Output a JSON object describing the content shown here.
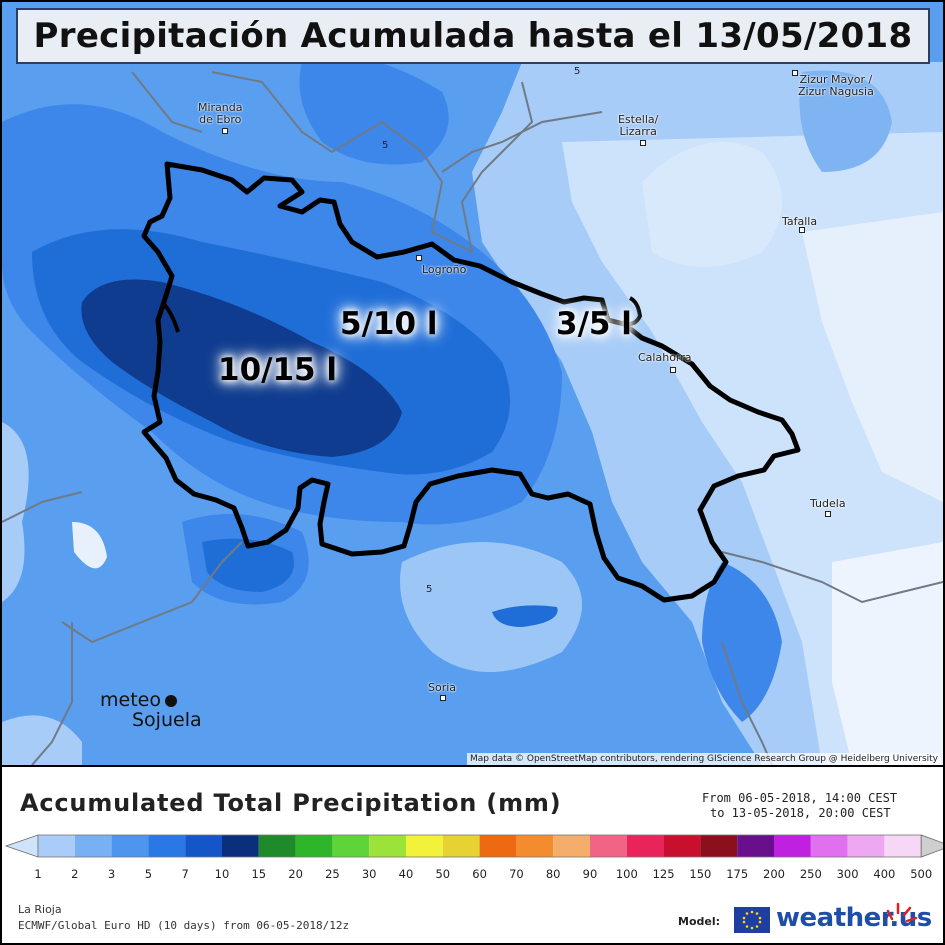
{
  "title": "Precipitación Acumulada hasta el 13/05/2018",
  "map": {
    "cities": [
      {
        "name": "Miranda\nde Ebro"
      },
      {
        "name": "Estella/\nLizarra"
      },
      {
        "name": "Zizur Mayor /\nZizur Nagusia"
      },
      {
        "name": "Tafalla"
      },
      {
        "name": "Logroño"
      },
      {
        "name": "Calahorra"
      },
      {
        "name": "Tudela"
      },
      {
        "name": "Soria"
      }
    ],
    "contour_labels": [
      "5",
      "5",
      "5"
    ],
    "amount_labels": [
      "10/15 l",
      "5/10 l",
      "3/5 l"
    ],
    "attribution": "Map data © OpenStreetMap contributors, rendering GIScience Research Group @ Heidelberg University",
    "brand_line1": "meteo",
    "brand_line2": "Sojuela"
  },
  "legend": {
    "title": "Accumulated Total Precipitation (mm)",
    "period_from": "From 06-05-2018, 14:00 CEST",
    "period_to": "to 13-05-2018, 20:00 CEST",
    "ticks": [
      "1",
      "2",
      "3",
      "5",
      "7",
      "10",
      "15",
      "20",
      "25",
      "30",
      "40",
      "50",
      "60",
      "70",
      "80",
      "90",
      "100",
      "125",
      "150",
      "175",
      "200",
      "250",
      "300",
      "400",
      "500"
    ],
    "colors": [
      "#cfe3fb",
      "#a9cdf8",
      "#78b1f3",
      "#4e95ee",
      "#2a78e6",
      "#1356c8",
      "#0a2f7c",
      "#1f8a2a",
      "#2fb52a",
      "#5fd33a",
      "#9be33a",
      "#f2f23a",
      "#e6d232",
      "#ee6a12",
      "#f38c2e",
      "#f5ad6c",
      "#f26484",
      "#e8245a",
      "#c8102e",
      "#8c0f1e",
      "#6a0f8c",
      "#c020e0",
      "#e070f0",
      "#eea8f2",
      "#f6d8f6",
      "#cfcfcf"
    ],
    "region": "La Rioja",
    "model": "ECMWF/Global Euro HD (10 days) from 06-05-2018/12z",
    "model_label": "Model:",
    "logo_text": "weather.us"
  }
}
